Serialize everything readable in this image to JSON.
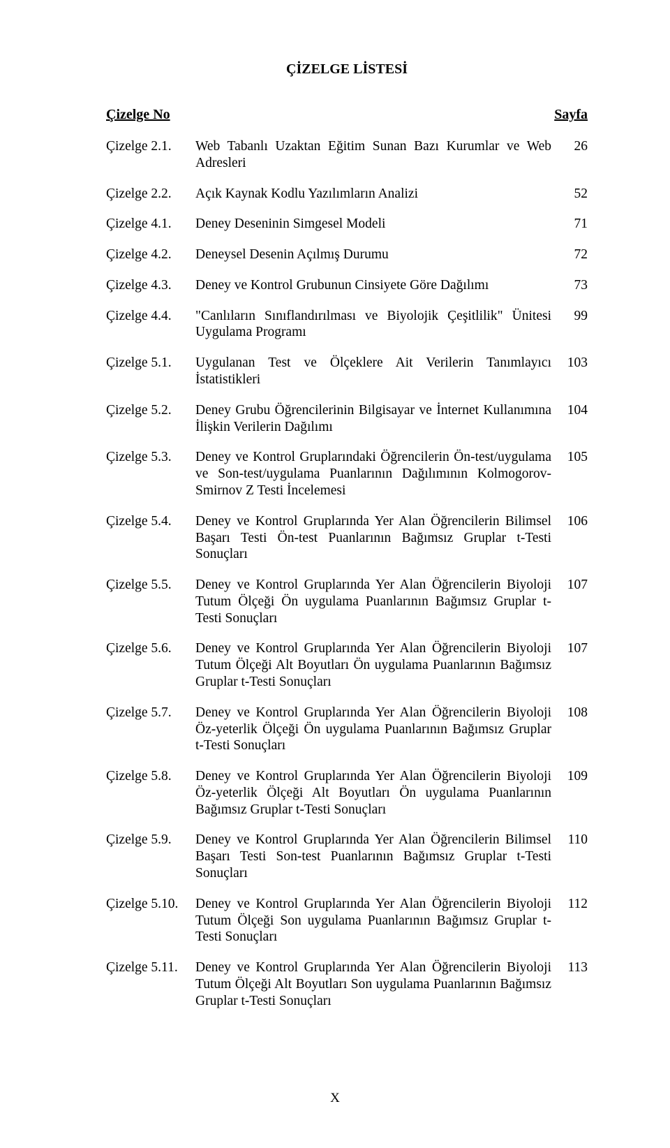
{
  "title": "ÇİZELGE LİSTESİ",
  "header": {
    "left": "Çizelge No",
    "right": "Sayfa"
  },
  "entries": [
    {
      "label": "Çizelge 2.1.",
      "desc": "Web Tabanlı Uzaktan Eğitim Sunan Bazı Kurumlar ve Web Adresleri",
      "pg": "26"
    },
    {
      "label": "Çizelge 2.2.",
      "desc": "Açık Kaynak Kodlu Yazılımların Analizi",
      "pg": "52"
    },
    {
      "label": "Çizelge 4.1.",
      "desc": "Deney Deseninin Simgesel Modeli",
      "pg": "71"
    },
    {
      "label": "Çizelge 4.2.",
      "desc": "Deneysel Desenin Açılmış Durumu",
      "pg": "72"
    },
    {
      "label": "Çizelge 4.3.",
      "desc": "Deney ve Kontrol Grubunun Cinsiyete Göre Dağılımı",
      "pg": "73"
    },
    {
      "label": "Çizelge 4.4.",
      "desc": "\"Canlıların Sınıflandırılması ve Biyolojik Çeşitlilik\" Ünitesi Uygulama Programı",
      "pg": "99"
    },
    {
      "label": "Çizelge 5.1.",
      "desc": "Uygulanan Test ve Ölçeklere Ait Verilerin Tanımlayıcı İstatistikleri",
      "pg": "103"
    },
    {
      "label": "Çizelge 5.2.",
      "desc": "Deney Grubu Öğrencilerinin Bilgisayar ve İnternet Kullanımına İlişkin Verilerin Dağılımı",
      "pg": "104"
    },
    {
      "label": "Çizelge 5.3.",
      "desc": "Deney ve Kontrol Gruplarındaki Öğrencilerin Ön-test/uygulama ve Son-test/uygulama Puanlarının Dağılımının Kolmogorov-Smirnov Z Testi İncelemesi",
      "pg": "105"
    },
    {
      "label": "Çizelge 5.4.",
      "desc": "Deney ve Kontrol Gruplarında Yer Alan Öğrencilerin Bilimsel Başarı Testi Ön-test Puanlarının Bağımsız Gruplar t-Testi Sonuçları",
      "pg": "106"
    },
    {
      "label": "Çizelge 5.5.",
      "desc": "Deney ve Kontrol Gruplarında Yer Alan Öğrencilerin Biyoloji Tutum Ölçeği Ön uygulama Puanlarının Bağımsız Gruplar t-Testi Sonuçları",
      "pg": "107"
    },
    {
      "label": "Çizelge 5.6.",
      "desc": "Deney ve Kontrol Gruplarında Yer Alan Öğrencilerin Biyoloji Tutum Ölçeği Alt Boyutları Ön uygulama Puanlarının Bağımsız Gruplar t-Testi Sonuçları",
      "pg": "107"
    },
    {
      "label": "Çizelge 5.7.",
      "desc": "Deney ve Kontrol Gruplarında Yer Alan Öğrencilerin Biyoloji Öz-yeterlik Ölçeği Ön uygulama Puanlarının Bağımsız Gruplar t-Testi Sonuçları",
      "pg": "108"
    },
    {
      "label": "Çizelge 5.8.",
      "desc": "Deney ve Kontrol Gruplarında Yer Alan Öğrencilerin Biyoloji Öz-yeterlik Ölçeği Alt Boyutları Ön uygulama Puanlarının Bağımsız Gruplar t-Testi Sonuçları",
      "pg": "109"
    },
    {
      "label": "Çizelge 5.9.",
      "desc": "Deney ve Kontrol Gruplarında Yer Alan Öğrencilerin Bilimsel Başarı Testi Son-test Puanlarının Bağımsız Gruplar t-Testi Sonuçları",
      "pg": "110"
    },
    {
      "label": "Çizelge 5.10.",
      "desc": "Deney ve Kontrol Gruplarında Yer Alan Öğrencilerin Biyoloji Tutum Ölçeği Son uygulama Puanlarının Bağımsız Gruplar t-Testi Sonuçları",
      "pg": "112"
    },
    {
      "label": "Çizelge 5.11.",
      "desc": "Deney ve Kontrol Gruplarında Yer Alan Öğrencilerin Biyoloji Tutum Ölçeği Alt Boyutları Son uygulama Puanlarının Bağımsız Gruplar t-Testi Sonuçları",
      "pg": "113"
    }
  ],
  "footer": "X"
}
